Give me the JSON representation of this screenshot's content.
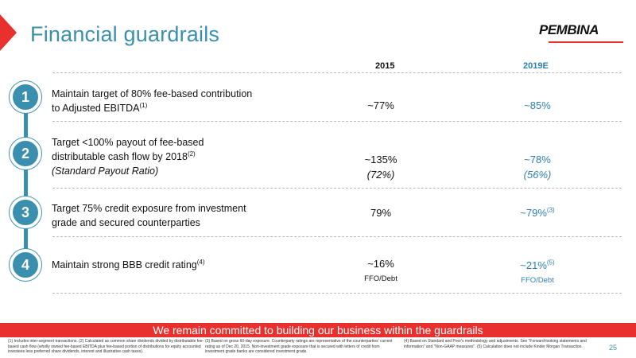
{
  "title": "Financial guardrails",
  "logo": {
    "text": "PEMBINA"
  },
  "columns": {
    "c2015": "2015",
    "c2019": "2019E"
  },
  "rows": [
    {
      "num": "1",
      "desc_line1": "Maintain target of 80% fee-based contribution",
      "desc_line2": "to Adjusted EBITDA",
      "desc_sup": "(1)",
      "v2015": "~77%",
      "v2019": "~85%"
    },
    {
      "num": "2",
      "desc_line1": "Target <100% payout of fee-based",
      "desc_line2": "distributable cash flow by 2018",
      "desc_sup": "(2)",
      "desc_line3": "(Standard Payout Ratio)",
      "v2015": "~135%",
      "v2015_sub": "(72%)",
      "v2019": "~78%",
      "v2019_sub": "(56%)"
    },
    {
      "num": "3",
      "desc_line1": "Target 75% credit exposure from investment",
      "desc_line2": "grade and secured counterparties",
      "v2015": "79%",
      "v2019": "~79%",
      "v2019_sup": "(3)"
    },
    {
      "num": "4",
      "desc_line1": "Maintain strong BBB credit rating",
      "desc_sup": "(4)",
      "v2015": "~16%",
      "v2015_sub": "FFO/Debt",
      "v2019": "~21%",
      "v2019_sup": "(5)",
      "v2019_sub": "FFO/Debt"
    }
  ],
  "banner": "We remain committed to building our business within the guardrails",
  "footnotes": {
    "col1": "(1) Includes inter-segment transactions.     (2) Calculated as common share dividends divided by distributable fee-based cash flow (wholly owned fee-based EBITDA plus fee-based portion of distributions for equity accounted investees less preferred share dividends, interest and illustrative cash taxes).",
    "col2": "(3) Based on gross 60-day exposure. Counterparty ratings are representative of the counterparties' current rating as of Dec 20, 2015. Non-investment grade exposure that is secured with letters of credit from investment grade banks are considered investment grade.",
    "col3": "(4) Based on Standard and Poor's methodology and adjustments. See \"Forward-looking statements and information\" and \"Non-GAAP measures\". (5) Calculation does not include Kinder Morgan Transaction."
  },
  "page_number": "25",
  "colors": {
    "accent_blue": "#3b8fae",
    "value_blue": "#2d7fb0",
    "brand_red": "#e8312f"
  }
}
